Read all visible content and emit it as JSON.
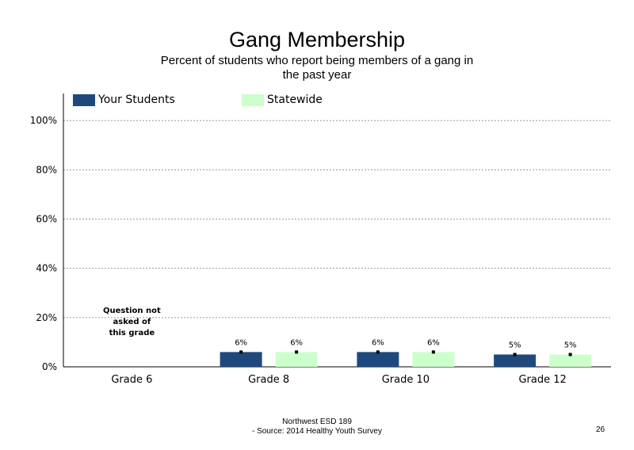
{
  "title": "Gang Membership",
  "subtitle": "Percent of students who report being members of a gang in the past year",
  "legend": [
    {
      "label": "Your Students",
      "color": "#1f497d"
    },
    {
      "label": "Statewide",
      "color": "#ccffcc"
    }
  ],
  "note_grade6": [
    "Question not",
    "asked of",
    "this grade"
  ],
  "footer": {
    "line1": "Northwest ESD  189",
    "line2": "- Source: 2014 Healthy  Youth Survey",
    "page": "26"
  },
  "chart_data": {
    "type": "bar",
    "categories": [
      "Grade 6",
      "Grade 8",
      "Grade 10",
      "Grade 12"
    ],
    "series": [
      {
        "name": "Your Students",
        "color": "#1f497d",
        "values": [
          null,
          6,
          6,
          5
        ],
        "labels": [
          "",
          "6%",
          "6%",
          "5%"
        ]
      },
      {
        "name": "Statewide",
        "color": "#ccffcc",
        "values": [
          null,
          6,
          6,
          5
        ],
        "labels": [
          "",
          "6%",
          "6%",
          "5%"
        ]
      }
    ],
    "y_ticks": [
      0,
      20,
      40,
      60,
      80,
      100
    ],
    "y_tick_labels": [
      "0%",
      "20%",
      "40%",
      "60%",
      "80%",
      "100%"
    ],
    "ylim": [
      0,
      111
    ],
    "grid": "dotted horizontal lines",
    "legend_position": "top",
    "error_bars": "small black squares on bars"
  }
}
